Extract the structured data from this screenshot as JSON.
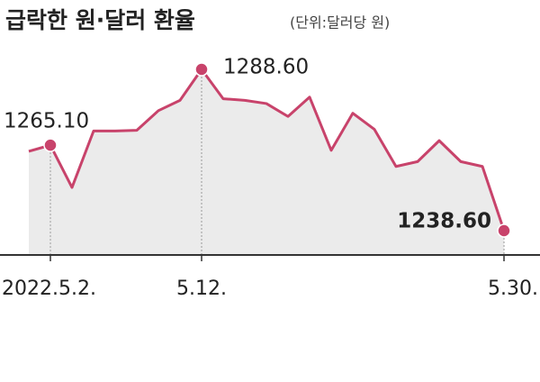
{
  "chart_data": {
    "type": "line",
    "title": "급락한 원·달러 환율",
    "subtitle": "(단위:달러당 원)",
    "categories": [
      null,
      "2022.5.2.",
      null,
      null,
      null,
      null,
      null,
      null,
      "5.12.",
      null,
      null,
      null,
      null,
      null,
      null,
      null,
      null,
      null,
      null,
      null,
      null,
      null,
      "5.30."
    ],
    "values": [
      1263.2,
      1265.1,
      1252.0,
      1269.5,
      1269.5,
      1269.7,
      1275.8,
      1279.0,
      1288.6,
      1279.5,
      1279.0,
      1278.0,
      1274.0,
      1280.0,
      1263.5,
      1275.0,
      1270.0,
      1258.5,
      1260.0,
      1266.5,
      1260.0,
      1258.5,
      1238.6
    ],
    "value_labels": [
      null,
      "1265.10",
      null,
      null,
      null,
      null,
      null,
      null,
      "1288.60",
      null,
      null,
      null,
      null,
      null,
      null,
      null,
      null,
      null,
      null,
      null,
      null,
      null,
      "1238.60"
    ],
    "color": "#c8436b",
    "fill": "#ebebeb"
  }
}
